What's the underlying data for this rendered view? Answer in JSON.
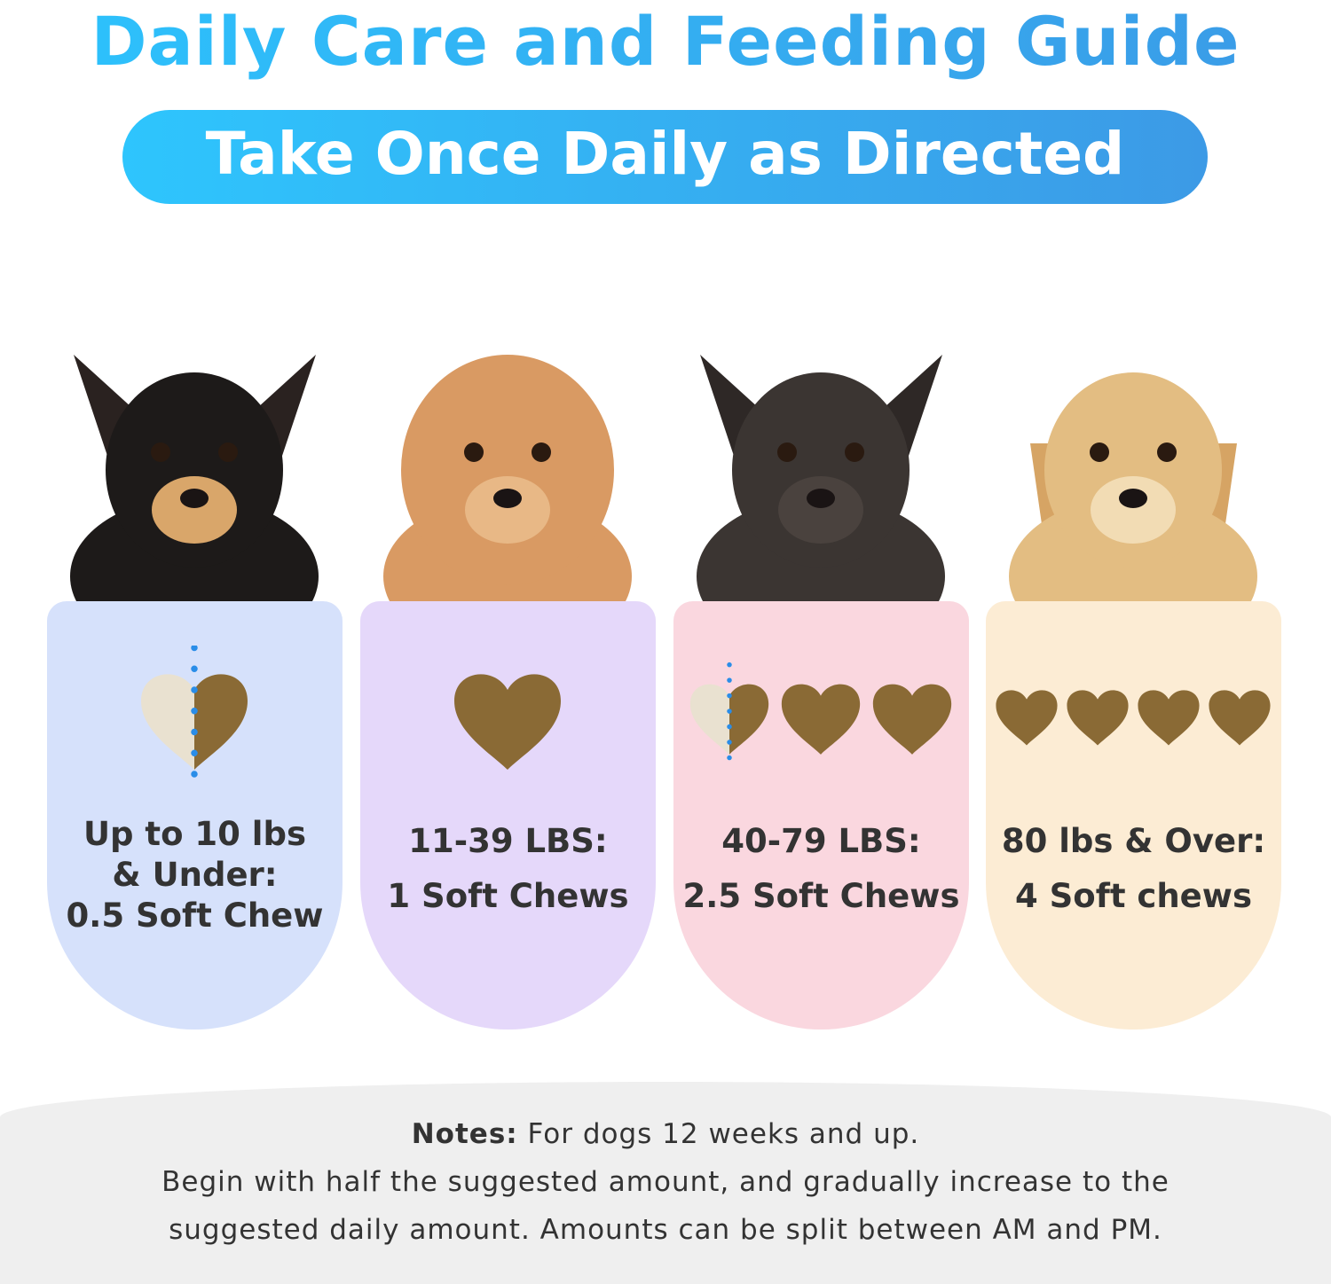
{
  "title": "Daily Care and Feeding Guide",
  "banner": "Take Once Daily as Directed",
  "colors": {
    "title": "#2db8f8",
    "banner_start": "#2ec5fd",
    "banner_end": "#3c9ae6",
    "chew": "#8a6a35",
    "chew_half": "#e9e1d0",
    "divider": "#2a8de8"
  },
  "cards": [
    {
      "dog": "chihuahua",
      "bg": "#d6e1fb",
      "chews": 0.5,
      "lines": [
        "Up to 10 lbs",
        "& Under:",
        "0.5 Soft Chew"
      ]
    },
    {
      "dog": "poodle",
      "bg": "#e5d8fa",
      "chews": 1,
      "lines": [
        "11-39 LBS:",
        "1 Soft Chews"
      ]
    },
    {
      "dog": "french-bulldog",
      "bg": "#fad7df",
      "chews": 2.5,
      "lines": [
        "40-79 LBS:",
        "2.5 Soft Chews"
      ]
    },
    {
      "dog": "golden-retriever",
      "bg": "#fcecd4",
      "chews": 4,
      "lines": [
        "80 lbs & Over:",
        "4 Soft chews"
      ]
    }
  ],
  "notes": {
    "label": "Notes:",
    "line1": "For dogs 12 weeks and up.",
    "line2": "Begin with half the suggested amount, and gradually increase to the",
    "line3": "suggested daily amount. Amounts can be split between AM and PM."
  }
}
